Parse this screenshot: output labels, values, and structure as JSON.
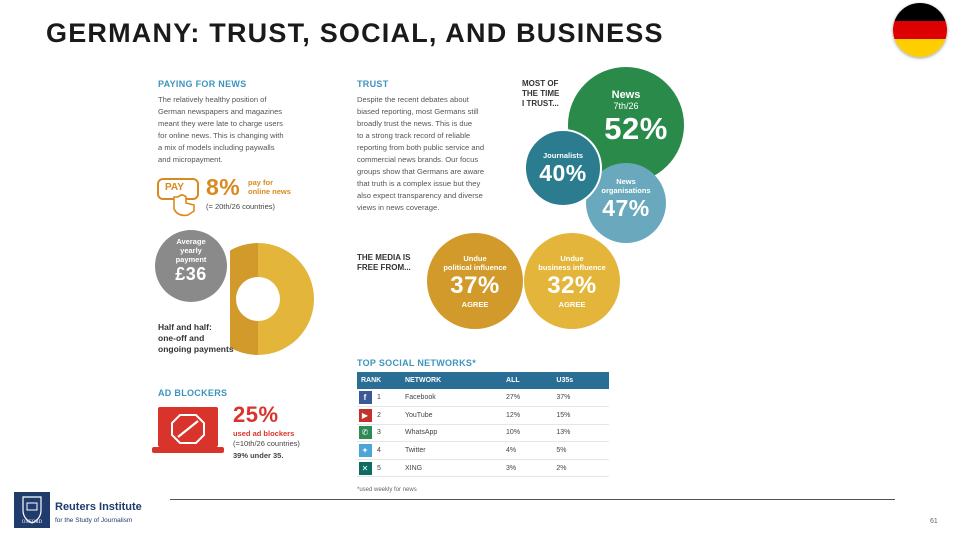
{
  "slide": {
    "title": "GERMANY: TRUST, SOCIAL, AND BUSINESS",
    "page_number": "61"
  },
  "flag": {
    "colors": [
      "#000000",
      "#dd0000",
      "#ffce00"
    ]
  },
  "paying": {
    "heading": "PAYING FOR NEWS",
    "body": [
      "The relatively healthy position of",
      "German newspapers and magazines",
      "meant they were late to charge users",
      "for online news. This is changing with",
      "a mix of models including paywalls",
      "and micropayment."
    ],
    "pay_label": "PAY",
    "pay_percent": "8%",
    "pay_text": [
      "pay for",
      "online news"
    ],
    "pay_rank": "(= 20th/26 countries)",
    "avg_label": [
      "Average",
      "yearly",
      "payment"
    ],
    "avg_value": "£36",
    "donut_share": 0.5,
    "half_text": [
      "Half and half:",
      "one-off and",
      "ongoing payments"
    ]
  },
  "adblock": {
    "heading": "AD BLOCKERS",
    "percent": "25%",
    "lines": [
      "used ad blockers",
      "(=10th/26 countries)"
    ],
    "under": "39% under 35."
  },
  "trust": {
    "heading": "TRUST",
    "body": [
      "Despite the recent debates about",
      "biased reporting, most Germans still",
      "broadly trust the news. This is due",
      "to a strong track record of reliable",
      "reporting from both public service and",
      "commercial news brands. Our focus",
      "groups show that Germans are aware",
      "that truth is a complex issue but they",
      "also expect transparency and diverse",
      "views in news coverage."
    ],
    "most_label": [
      "MOST OF",
      "THE TIME",
      "I TRUST..."
    ],
    "news_label": "News",
    "news_rank": "7th/26",
    "news_value": "52%",
    "journalists_label": "Journalists",
    "journalists_value": "40%",
    "orgs_label": [
      "News",
      "organisations"
    ],
    "orgs_value": "47%"
  },
  "media": {
    "heading": [
      "THE MEDIA IS",
      "FREE FROM..."
    ],
    "political_label": [
      "Undue",
      "political influence"
    ],
    "political_value": "37%",
    "business_label": [
      "Undue",
      "business influence"
    ],
    "business_value": "32%",
    "agree": "AGREE"
  },
  "social": {
    "heading": "TOP SOCIAL NETWORKS*",
    "columns": [
      "RANK",
      "NETWORK",
      "ALL",
      "U35s"
    ],
    "rows": [
      {
        "icon": "facebook-icon",
        "glyph": "f",
        "color": "#3b5998",
        "rank": "1",
        "network": "Facebook",
        "all": "27%",
        "u35": "37%"
      },
      {
        "icon": "youtube-icon",
        "glyph": "▶",
        "color": "#c4302b",
        "rank": "2",
        "network": "YouTube",
        "all": "12%",
        "u35": "15%"
      },
      {
        "icon": "whatsapp-icon",
        "glyph": "✆",
        "color": "#2e8b57",
        "rank": "3",
        "network": "WhatsApp",
        "all": "10%",
        "u35": "13%"
      },
      {
        "icon": "twitter-icon",
        "glyph": "✦",
        "color": "#4aa6d9",
        "rank": "4",
        "network": "Twitter",
        "all": "4%",
        "u35": "5%"
      },
      {
        "icon": "xing-icon",
        "glyph": "✕",
        "color": "#0d6b5f",
        "rank": "5",
        "network": "XING",
        "all": "3%",
        "u35": "2%"
      }
    ],
    "footnote": "*used weekly for news"
  },
  "footer": {
    "institute": "Reuters Institute",
    "sub": "for the Study of Journalism",
    "university": "OXFORD"
  },
  "colors": {
    "blue_head": "#3d94bd",
    "green": "#2a8a4a",
    "teal": "#2b7c8e",
    "light_blue": "#6aa9bd",
    "gold_dark": "#d19a2a",
    "gold": "#e3b53a",
    "orange": "#d88a1e",
    "grey": "#8a8a8a",
    "red": "#d9342b"
  }
}
